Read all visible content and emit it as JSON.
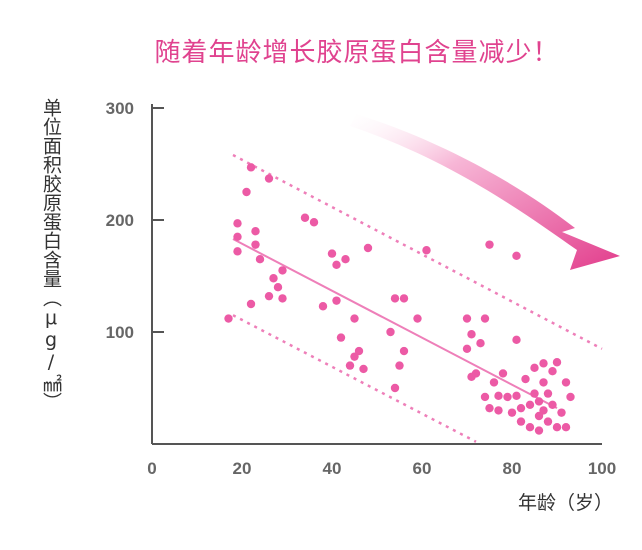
{
  "chart_data": {
    "type": "scatter",
    "title": "随着年龄增长胶原蛋白含量减少！",
    "xlabel": "年龄（岁）",
    "ylabel": "单位面积胶原蛋白含量（μg/㎟）",
    "xlim": [
      0,
      100
    ],
    "ylim": [
      0,
      300
    ],
    "xticks": [
      "0",
      "20",
      "40",
      "60",
      "80",
      "100"
    ],
    "yticks": [
      "100",
      "200",
      "300"
    ],
    "grid": false,
    "points": [
      {
        "x": 17,
        "y": 112
      },
      {
        "x": 19,
        "y": 172
      },
      {
        "x": 19,
        "y": 185
      },
      {
        "x": 19,
        "y": 197
      },
      {
        "x": 21,
        "y": 225
      },
      {
        "x": 22,
        "y": 247
      },
      {
        "x": 22,
        "y": 125
      },
      {
        "x": 23,
        "y": 190
      },
      {
        "x": 23,
        "y": 178
      },
      {
        "x": 24,
        "y": 165
      },
      {
        "x": 26,
        "y": 132
      },
      {
        "x": 26,
        "y": 237
      },
      {
        "x": 27,
        "y": 148
      },
      {
        "x": 28,
        "y": 140
      },
      {
        "x": 29,
        "y": 130
      },
      {
        "x": 29,
        "y": 155
      },
      {
        "x": 34,
        "y": 202
      },
      {
        "x": 36,
        "y": 198
      },
      {
        "x": 38,
        "y": 123
      },
      {
        "x": 40,
        "y": 170
      },
      {
        "x": 41,
        "y": 128
      },
      {
        "x": 41,
        "y": 160
      },
      {
        "x": 42,
        "y": 95
      },
      {
        "x": 43,
        "y": 165
      },
      {
        "x": 44,
        "y": 70
      },
      {
        "x": 45,
        "y": 112
      },
      {
        "x": 45,
        "y": 78
      },
      {
        "x": 46,
        "y": 83
      },
      {
        "x": 47,
        "y": 67
      },
      {
        "x": 48,
        "y": 175
      },
      {
        "x": 53,
        "y": 100
      },
      {
        "x": 54,
        "y": 130
      },
      {
        "x": 54,
        "y": 50
      },
      {
        "x": 55,
        "y": 70
      },
      {
        "x": 56,
        "y": 130
      },
      {
        "x": 56,
        "y": 83
      },
      {
        "x": 59,
        "y": 112
      },
      {
        "x": 61,
        "y": 173
      },
      {
        "x": 70,
        "y": 112
      },
      {
        "x": 70,
        "y": 85
      },
      {
        "x": 71,
        "y": 98
      },
      {
        "x": 71,
        "y": 60
      },
      {
        "x": 72,
        "y": 63
      },
      {
        "x": 73,
        "y": 90
      },
      {
        "x": 74,
        "y": 112
      },
      {
        "x": 74,
        "y": 42
      },
      {
        "x": 75,
        "y": 178
      },
      {
        "x": 75,
        "y": 32
      },
      {
        "x": 76,
        "y": 55
      },
      {
        "x": 77,
        "y": 43
      },
      {
        "x": 77,
        "y": 30
      },
      {
        "x": 78,
        "y": 63
      },
      {
        "x": 79,
        "y": 42
      },
      {
        "x": 80,
        "y": 28
      },
      {
        "x": 81,
        "y": 93
      },
      {
        "x": 81,
        "y": 168
      },
      {
        "x": 81,
        "y": 43
      },
      {
        "x": 82,
        "y": 32
      },
      {
        "x": 82,
        "y": 20
      },
      {
        "x": 83,
        "y": 58
      },
      {
        "x": 84,
        "y": 35
      },
      {
        "x": 84,
        "y": 15
      },
      {
        "x": 85,
        "y": 68
      },
      {
        "x": 85,
        "y": 45
      },
      {
        "x": 86,
        "y": 38
      },
      {
        "x": 86,
        "y": 25
      },
      {
        "x": 86,
        "y": 12
      },
      {
        "x": 87,
        "y": 72
      },
      {
        "x": 87,
        "y": 55
      },
      {
        "x": 87,
        "y": 30
      },
      {
        "x": 88,
        "y": 45
      },
      {
        "x": 88,
        "y": 20
      },
      {
        "x": 89,
        "y": 65
      },
      {
        "x": 89,
        "y": 35
      },
      {
        "x": 90,
        "y": 73
      },
      {
        "x": 90,
        "y": 15
      },
      {
        "x": 91,
        "y": 28
      },
      {
        "x": 92,
        "y": 55
      },
      {
        "x": 92,
        "y": 15
      },
      {
        "x": 93,
        "y": 42
      }
    ],
    "trend_line": {
      "x": [
        18,
        90
      ],
      "y": [
        183,
        32
      ]
    },
    "upper_band": {
      "x": [
        18,
        100
      ],
      "y": [
        258,
        85
      ]
    },
    "lower_band": {
      "x": [
        18,
        72
      ],
      "y": [
        115,
        2
      ]
    },
    "colors": {
      "title": "#e0438f",
      "points": "#ec5aa5",
      "lines": "#ee7fb9",
      "axis": "#555555",
      "tick_labels": "#666666",
      "arrow": "#e23d8c"
    }
  }
}
